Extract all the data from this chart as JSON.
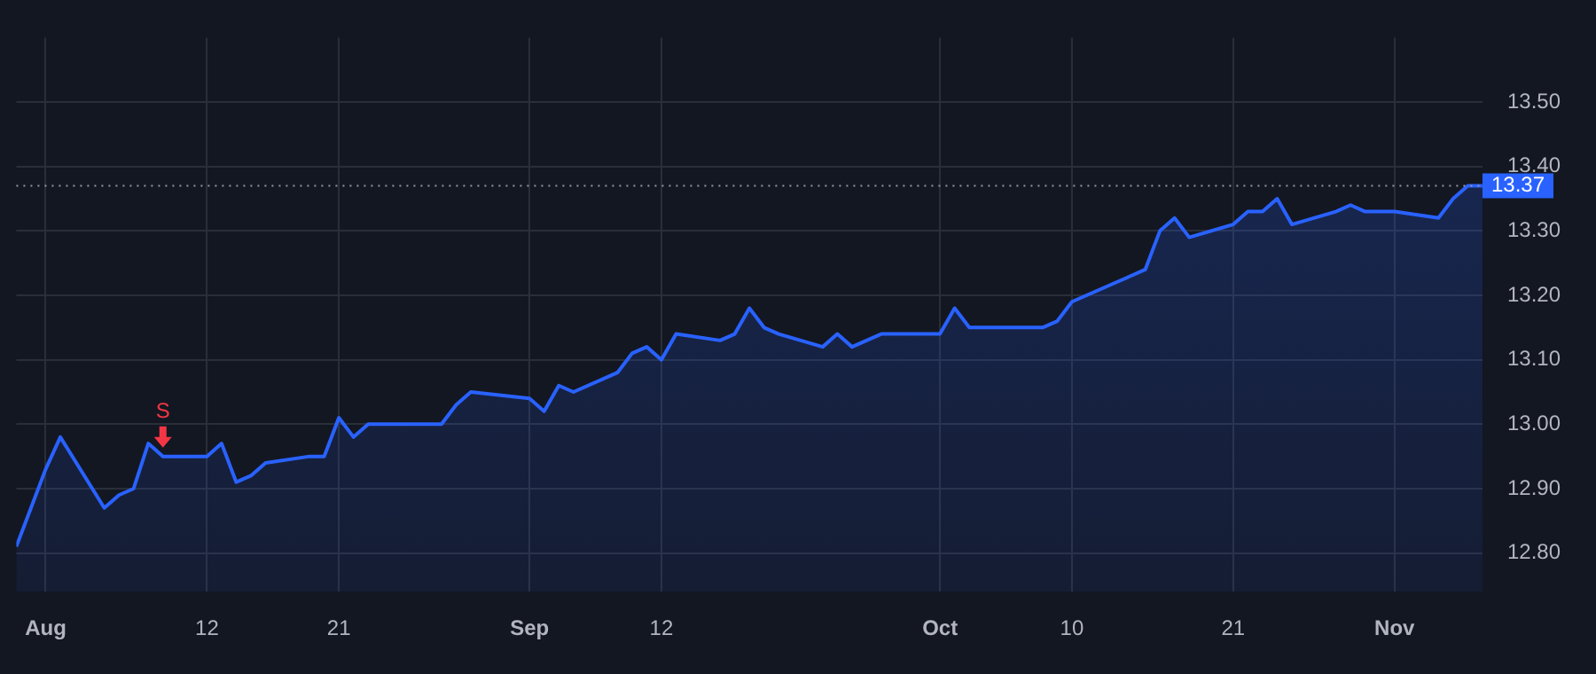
{
  "chart_data": {
    "type": "area",
    "x": [
      "--07-30",
      "--07-31",
      "--08-01",
      "--08-02",
      "--08-05",
      "--08-06",
      "--08-07",
      "--08-08",
      "--08-09",
      "--08-12",
      "--08-13",
      "--08-14",
      "--08-15",
      "--08-16",
      "--08-19",
      "--08-20",
      "--08-21",
      "--08-22",
      "--08-23",
      "--08-26",
      "--08-27",
      "--08-28",
      "--08-29",
      "--08-30",
      "--09-03",
      "--09-04",
      "--09-05",
      "--09-06",
      "--09-09",
      "--09-10",
      "--09-11",
      "--09-12",
      "--09-13",
      "--09-16",
      "--09-17",
      "--09-18",
      "--09-19",
      "--09-20",
      "--09-23",
      "--09-24",
      "--09-25",
      "--09-26",
      "--09-27",
      "--09-30",
      "--10-01",
      "--10-02",
      "--10-03",
      "--10-04",
      "--10-07",
      "--10-08",
      "--10-09",
      "--10-10",
      "--10-11",
      "--10-14",
      "--10-15",
      "--10-16",
      "--10-17",
      "--10-18",
      "--10-21",
      "--10-22",
      "--10-23",
      "--10-24",
      "--10-25",
      "--10-28",
      "--10-29",
      "--10-30",
      "--10-31",
      "--11-01",
      "--11-04",
      "--11-05",
      "--11-06",
      "--11-07"
    ],
    "series": [
      {
        "color": "#2962ff",
        "values": [
          12.81,
          12.87,
          12.93,
          12.98,
          12.87,
          12.89,
          12.9,
          12.97,
          12.95,
          12.95,
          12.97,
          12.91,
          12.92,
          12.94,
          12.95,
          12.95,
          13.01,
          12.98,
          13.0,
          13.0,
          13.0,
          13.0,
          13.03,
          13.05,
          13.04,
          13.02,
          13.06,
          13.05,
          13.08,
          13.11,
          13.12,
          13.1,
          13.14,
          13.13,
          13.14,
          13.18,
          13.15,
          13.14,
          13.12,
          13.14,
          13.12,
          13.13,
          13.14,
          13.14,
          13.14,
          13.18,
          13.15,
          13.15,
          13.15,
          13.15,
          13.16,
          13.19,
          13.2,
          13.23,
          13.24,
          13.3,
          13.32,
          13.29,
          13.31,
          13.33,
          13.33,
          13.35,
          13.31,
          13.33,
          13.34,
          13.33,
          13.33,
          13.33,
          13.32,
          13.35,
          13.37,
          13.37
        ]
      }
    ],
    "xlim": [
      "--07-30",
      "--11-07"
    ],
    "ylim": [
      12.74,
      13.6
    ],
    "yticks": [
      {
        "value": 12.8,
        "label": "12.80"
      },
      {
        "value": 12.9,
        "label": "12.90"
      },
      {
        "value": 13.0,
        "label": "13.00"
      },
      {
        "value": 13.1,
        "label": "13.10"
      },
      {
        "value": 13.2,
        "label": "13.20"
      },
      {
        "value": 13.3,
        "label": "13.30"
      },
      {
        "value": 13.4,
        "label": "13.40"
      },
      {
        "value": 13.5,
        "label": "13.50"
      }
    ],
    "xticks": [
      {
        "value": "--08-01",
        "label": "Aug"
      },
      {
        "value": "--08-12",
        "label": "12"
      },
      {
        "value": "--08-21",
        "label": "21"
      },
      {
        "value": "--09-03",
        "label": "Sep"
      },
      {
        "value": "--09-12",
        "label": "12"
      },
      {
        "value": "--10-01",
        "label": "Oct"
      },
      {
        "value": "--10-10",
        "label": "10"
      },
      {
        "value": "--10-21",
        "label": "21"
      },
      {
        "value": "--11-01",
        "label": "Nov"
      }
    ],
    "ref_lines": [
      {
        "axis": "y",
        "value": 13.37,
        "label": "13.37",
        "color": "#9598a1",
        "line_style": "dotted"
      }
    ],
    "annotations": [
      {
        "text": "S",
        "x": "--08-09",
        "y": 12.95
      }
    ],
    "grid": true,
    "legend": false,
    "marker": "none",
    "line_style": "solid"
  }
}
